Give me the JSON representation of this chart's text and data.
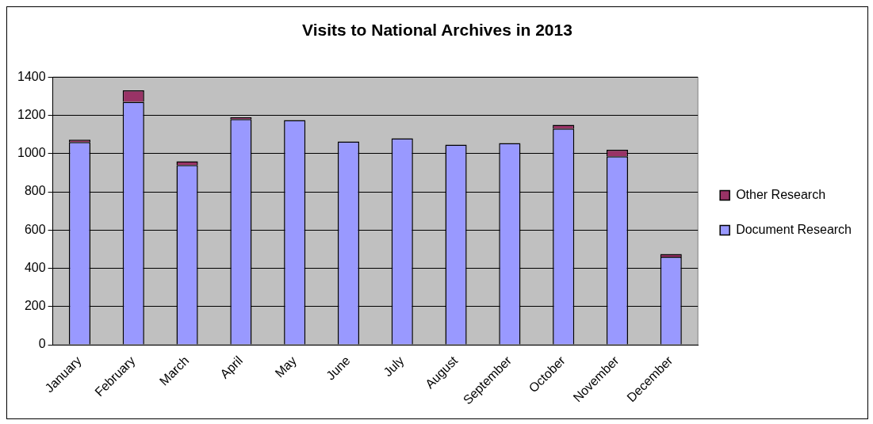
{
  "chart_data": {
    "type": "bar",
    "title": "Visits to National Archives in 2013",
    "categories": [
      "January",
      "February",
      "March",
      "April",
      "May",
      "June",
      "July",
      "August",
      "September",
      "October",
      "November",
      "December"
    ],
    "series": [
      {
        "name": "Document Research",
        "color": "#9999ff",
        "values": [
          1060,
          1270,
          940,
          1180,
          1175,
          1063,
          1080,
          1047,
          1055,
          1130,
          985,
          460
        ]
      },
      {
        "name": "Other Research",
        "color": "#993366",
        "values": [
          12,
          60,
          20,
          10,
          0,
          0,
          0,
          0,
          0,
          20,
          35,
          15
        ]
      }
    ],
    "stacked": true,
    "ylim": [
      0,
      1400
    ],
    "yticks": [
      0,
      200,
      400,
      600,
      800,
      1000,
      1200,
      1400
    ],
    "grid": "y",
    "legend": "right"
  }
}
